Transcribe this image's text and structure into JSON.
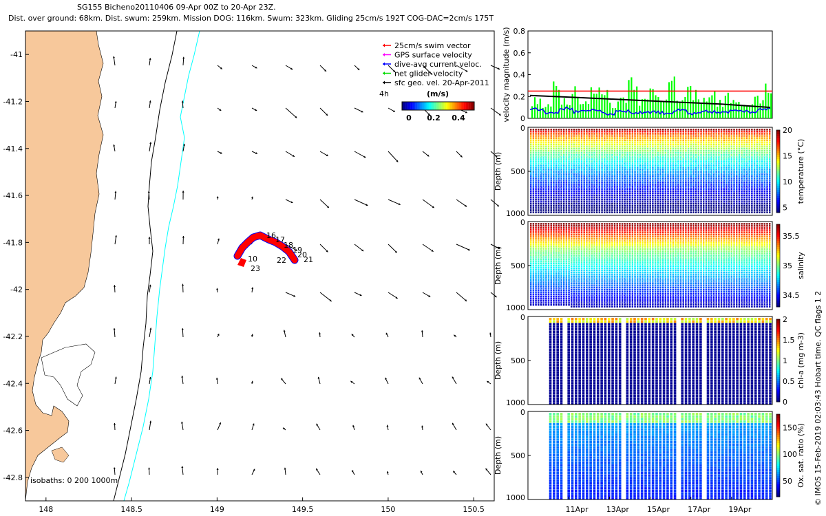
{
  "header": {
    "line1": "SG155 Bicheno20110406 09-Apr 00Z to 20-Apr 23Z.",
    "line2": "Dist. over ground: 68km. Dist. swum: 259km. Mission DOG: 116km. Swum: 323km. Gliding 25cm/s 192T COG-DAC=2cm/s 175T"
  },
  "map": {
    "xticks": [
      "148",
      "148.5",
      "149",
      "149.5",
      "150",
      "150.5"
    ],
    "yticks": [
      "-41",
      "-41.2",
      "-41.4",
      "-41.6",
      "-41.8",
      "-42",
      "-42.2",
      "-42.4",
      "-42.6",
      "-42.8"
    ],
    "xlim": [
      147.88,
      150.62
    ],
    "ylim": [
      -42.9,
      -40.9
    ],
    "isobaths_label": "isobaths: 0   200  1000m",
    "legend": {
      "items": [
        {
          "label": "25cm/s swim vector",
          "color": "#ff0000"
        },
        {
          "label": "GPS surface velocity",
          "color": "#ff00ff"
        },
        {
          "label": "dive-avg current veloc.",
          "color": "#0000ff"
        },
        {
          "label": "net glider velocity",
          "color": "#00dd00"
        },
        {
          "label": "sfc geo. vel. 20-Apr-2011",
          "color": "#000000"
        }
      ],
      "time_label": "4h",
      "colorbar_title": "(m/s)",
      "colorbar_ticks": [
        "0",
        "0.2",
        "0.4"
      ]
    },
    "track_labels": [
      "16",
      "17",
      "18",
      "19",
      "20",
      "21",
      "22",
      "23",
      "10"
    ],
    "colors": {
      "land": "#f7c89b",
      "isobath_200": "#000000",
      "isobath_1000": "#00ffff",
      "track": "#ff0000"
    }
  },
  "chart_data": [
    {
      "type": "line",
      "ylabel": "velocity magnitude (m/s)",
      "ylim": [
        0,
        0.8
      ],
      "yticks": [
        "0",
        "0.2",
        "0.4",
        "0.6",
        "0.8"
      ],
      "series": [
        {
          "values": [
            0.25,
            0.25
          ],
          "color": "#ff0000"
        },
        {
          "values": [
            0.21,
            0.19,
            0.17,
            0.15,
            0.13,
            0.1
          ],
          "color": "#000000"
        },
        {
          "values": [
            0.08,
            0.05,
            0.09,
            0.06,
            0.08,
            0.04,
            0.07,
            0.05,
            0.06,
            0.05,
            0.07,
            0.04,
            0.06,
            0.05,
            0.08,
            0.06,
            0.09
          ],
          "color": "#0000ff"
        },
        {
          "values": [
            0.18,
            0.12,
            0.37,
            0.2,
            0.31,
            0.16,
            0.28,
            0.3,
            0.15,
            0.22,
            0.42,
            0.18,
            0.3,
            0.24,
            0.35,
            0.2,
            0.27,
            0.18,
            0.25,
            0.16,
            0.22,
            0.15,
            0.12,
            0.2,
            0.34
          ],
          "color": "#00ff00"
        }
      ]
    },
    {
      "type": "heatmap",
      "ylabel": "Depth (m)",
      "yticks": [
        "0",
        "500",
        "1000"
      ],
      "colorbar_label": "temperature (°C)",
      "colorbar_ticks": [
        "20",
        "15",
        "10",
        "5"
      ],
      "clim": [
        4,
        20
      ]
    },
    {
      "type": "heatmap",
      "ylabel": "Depth (m)",
      "yticks": [
        "0",
        "500",
        "1000"
      ],
      "colorbar_label": "salinity",
      "colorbar_ticks": [
        "35.5",
        "35",
        "34.5"
      ],
      "clim": [
        34.3,
        35.7
      ]
    },
    {
      "type": "heatmap",
      "ylabel": "Depth (m)",
      "yticks": [
        "0",
        "500",
        "1000"
      ],
      "colorbar_label": "chl-a (mg m-3)",
      "colorbar_ticks": [
        "2",
        "1.5",
        "1",
        "0.5",
        "0"
      ],
      "clim": [
        0,
        2
      ]
    },
    {
      "type": "heatmap",
      "ylabel": "Depth (m)",
      "yticks": [
        "0",
        "500",
        "1000"
      ],
      "xticks": [
        "11Apr",
        "13Apr",
        "15Apr",
        "17Apr",
        "19Apr"
      ],
      "colorbar_label": "Ox. sat. ratio (%)",
      "colorbar_ticks": [
        "150",
        "100",
        "50"
      ],
      "clim": [
        20,
        175
      ]
    }
  ],
  "footer": {
    "credit": "© IMOS 15-Feb-2019 02:03:43 Hobart time. QC flags 1  2"
  }
}
